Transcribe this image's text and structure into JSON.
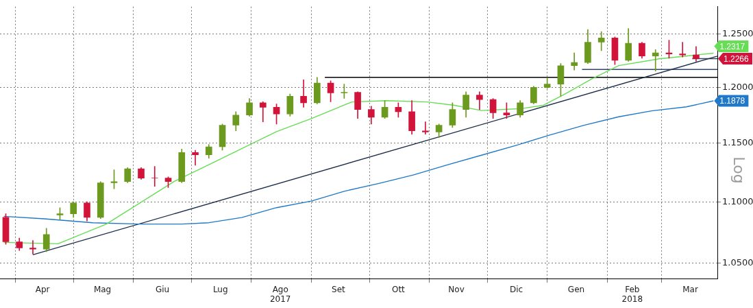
{
  "chart_data": {
    "type": "candlestick",
    "log": true,
    "grid": true,
    "legend": false,
    "marker": "none",
    "x": [
      "2017-03-27",
      "2017-04-03",
      "2017-04-10",
      "2017-04-17",
      "2017-04-24",
      "2017-05-01",
      "2017-05-08",
      "2017-05-15",
      "2017-05-22",
      "2017-05-29",
      "2017-06-05",
      "2017-06-12",
      "2017-06-19",
      "2017-06-26",
      "2017-07-03",
      "2017-07-10",
      "2017-07-17",
      "2017-07-24",
      "2017-07-31",
      "2017-08-07",
      "2017-08-14",
      "2017-08-21",
      "2017-08-28",
      "2017-09-04",
      "2017-09-11",
      "2017-09-18",
      "2017-09-25",
      "2017-10-02",
      "2017-10-09",
      "2017-10-16",
      "2017-10-23",
      "2017-10-30",
      "2017-11-06",
      "2017-11-13",
      "2017-11-20",
      "2017-11-27",
      "2017-12-04",
      "2017-12-11",
      "2017-12-18",
      "2017-12-25",
      "2018-01-01",
      "2018-01-08",
      "2018-01-15",
      "2018-01-22",
      "2018-01-29",
      "2018-02-05",
      "2018-02-12",
      "2018-02-19",
      "2018-02-26",
      "2018-03-05",
      "2018-03-12",
      "2018-03-19"
    ],
    "ohlc": [
      [
        1.087,
        1.09,
        1.065,
        1.067
      ],
      [
        1.067,
        1.07,
        1.06,
        1.062
      ],
      [
        1.062,
        1.068,
        1.057,
        1.061
      ],
      [
        1.061,
        1.078,
        1.059,
        1.073
      ],
      [
        1.089,
        1.095,
        1.085,
        1.09
      ],
      [
        1.09,
        1.1,
        1.087,
        1.099
      ],
      [
        1.099,
        1.1,
        1.084,
        1.087
      ],
      [
        1.087,
        1.117,
        1.086,
        1.116
      ],
      [
        1.116,
        1.127,
        1.111,
        1.117
      ],
      [
        1.117,
        1.129,
        1.116,
        1.128
      ],
      [
        1.128,
        1.129,
        1.119,
        1.12
      ],
      [
        1.12,
        1.13,
        1.113,
        1.12
      ],
      [
        1.12,
        1.121,
        1.112,
        1.117
      ],
      [
        1.117,
        1.145,
        1.116,
        1.142
      ],
      [
        1.142,
        1.144,
        1.131,
        1.14
      ],
      [
        1.14,
        1.149,
        1.137,
        1.147
      ],
      [
        1.147,
        1.167,
        1.144,
        1.166
      ],
      [
        1.166,
        1.178,
        1.161,
        1.175
      ],
      [
        1.175,
        1.19,
        1.174,
        1.186
      ],
      [
        1.186,
        1.187,
        1.169,
        1.182
      ],
      [
        1.182,
        1.185,
        1.167,
        1.176
      ],
      [
        1.176,
        1.194,
        1.174,
        1.192
      ],
      [
        1.192,
        1.207,
        1.182,
        1.186
      ],
      [
        1.186,
        1.2092,
        1.185,
        1.204
      ],
      [
        1.204,
        1.206,
        1.187,
        1.195
      ],
      [
        1.195,
        1.203,
        1.19,
        1.1955
      ],
      [
        1.1955,
        1.196,
        1.172,
        1.18
      ],
      [
        1.18,
        1.183,
        1.167,
        1.173
      ],
      [
        1.173,
        1.188,
        1.172,
        1.182
      ],
      [
        1.182,
        1.186,
        1.173,
        1.178
      ],
      [
        1.178,
        1.188,
        1.158,
        1.161
      ],
      [
        1.161,
        1.169,
        1.158,
        1.16
      ],
      [
        1.16,
        1.167,
        1.155,
        1.166
      ],
      [
        1.166,
        1.186,
        1.164,
        1.18
      ],
      [
        1.18,
        1.196,
        1.173,
        1.193
      ],
      [
        1.193,
        1.196,
        1.18,
        1.189
      ],
      [
        1.189,
        1.19,
        1.172,
        1.177
      ],
      [
        1.177,
        1.186,
        1.172,
        1.175
      ],
      [
        1.175,
        1.188,
        1.173,
        1.186
      ],
      [
        1.186,
        1.201,
        1.185,
        1.2
      ],
      [
        1.2,
        1.209,
        1.199,
        1.203
      ],
      [
        1.203,
        1.222,
        1.192,
        1.22
      ],
      [
        1.22,
        1.232,
        1.216,
        1.223
      ],
      [
        1.223,
        1.254,
        1.222,
        1.242
      ],
      [
        1.242,
        1.252,
        1.234,
        1.246
      ],
      [
        1.246,
        1.247,
        1.221,
        1.225
      ],
      [
        1.225,
        1.255,
        1.224,
        1.241
      ],
      [
        1.241,
        1.242,
        1.227,
        1.229
      ],
      [
        1.229,
        1.235,
        1.215,
        1.232
      ],
      [
        1.232,
        1.244,
        1.227,
        1.231
      ],
      [
        1.231,
        1.242,
        1.228,
        1.23
      ],
      [
        1.23,
        1.238,
        1.224,
        1.2266
      ]
    ],
    "colors": [
      "#d2143a",
      "#d2143a",
      "#d2143a",
      "#6b9a1e",
      "#6b9a1e",
      "#6b9a1e",
      "#d2143a",
      "#6b9a1e",
      "#6b9a1e",
      "#6b9a1e",
      "#d2143a",
      "#d2143a",
      "#d2143a",
      "#6b9a1e",
      "#d2143a",
      "#6b9a1e",
      "#6b9a1e",
      "#6b9a1e",
      "#6b9a1e",
      "#d2143a",
      "#d2143a",
      "#6b9a1e",
      "#d2143a",
      "#6b9a1e",
      "#d2143a",
      "#6b9a1e",
      "#d2143a",
      "#d2143a",
      "#6b9a1e",
      "#d2143a",
      "#d2143a",
      "#d2143a",
      "#6b9a1e",
      "#6b9a1e",
      "#6b9a1e",
      "#d2143a",
      "#d2143a",
      "#d2143a",
      "#6b9a1e",
      "#6b9a1e",
      "#6b9a1e",
      "#6b9a1e",
      "#6b9a1e",
      "#6b9a1e",
      "#6b9a1e",
      "#d2143a",
      "#6b9a1e",
      "#d2143a",
      "#6b9a1e",
      "#d2143a",
      "#d2143a",
      "#d2143a"
    ],
    "series": [
      {
        "type": "line",
        "color": "#66dd55",
        "x": [
          "2017-03-26",
          "2017-04-23",
          "2017-05-18",
          "2017-06-22",
          "2017-07-10",
          "2017-08-14",
          "2017-09-01",
          "2017-09-22",
          "2017-10-10",
          "2017-10-31",
          "2017-11-14",
          "2017-11-28",
          "2017-12-19",
          "2017-12-30",
          "2018-01-09",
          "2018-01-24",
          "2018-02-07",
          "2018-02-28",
          "2018-03-28"
        ],
        "values": [
          1.0665,
          1.0654,
          1.0815,
          1.1171,
          1.1314,
          1.1603,
          1.1719,
          1.1868,
          1.188,
          1.1868,
          1.1838,
          1.1791,
          1.1809,
          1.1838,
          1.1929,
          1.2078,
          1.2201,
          1.2264,
          1.2317
        ]
      },
      {
        "type": "line",
        "color": "#1f78c8",
        "x": [
          "2017-03-26",
          "2017-04-16",
          "2017-05-11",
          "2017-06-04",
          "2017-06-26",
          "2017-07-10",
          "2017-07-27",
          "2017-08-14",
          "2017-09-01",
          "2017-09-18",
          "2017-10-06",
          "2017-10-24",
          "2017-11-10",
          "2017-11-28",
          "2017-12-16",
          "2018-01-02",
          "2018-01-20",
          "2018-02-07",
          "2018-02-24",
          "2018-03-14",
          "2018-03-28"
        ],
        "values": [
          1.0879,
          1.0858,
          1.0826,
          1.0815,
          1.0815,
          1.0826,
          1.0869,
          1.0951,
          1.1006,
          1.1088,
          1.1155,
          1.1228,
          1.1312,
          1.1397,
          1.1483,
          1.1571,
          1.1659,
          1.1735,
          1.1788,
          1.1824,
          1.1878
        ]
      },
      {
        "type": "line",
        "color": "#1c2e4a",
        "x": [
          "2017-04-10",
          "2018-03-30"
        ],
        "values": [
          1.0565,
          1.2289
        ]
      },
      {
        "type": "line",
        "color": "#000000",
        "x": [
          "2017-09-08",
          "2018-03-30"
        ],
        "values": [
          1.2092,
          1.2092
        ]
      },
      {
        "type": "line",
        "color": "#34456a",
        "x": [
          "2018-01-19",
          "2018-03-30"
        ],
        "values": [
          1.2165,
          1.2165
        ]
      },
      {
        "type": "line",
        "color": "#34456a",
        "x": [
          "2018-03-17",
          "2018-03-30"
        ],
        "values": [
          1.2266,
          1.2266
        ]
      }
    ],
    "xlim": [
      "2017-03-24",
      "2018-03-30"
    ],
    "xticks": [
      {
        "value": "2017-04-01",
        "label": null
      },
      {
        "value": "2017-04-15",
        "label": "Apr"
      },
      {
        "value": "2017-05-01",
        "label": null
      },
      {
        "value": "2017-05-16",
        "label": "Mag"
      },
      {
        "value": "2017-06-01",
        "label": null
      },
      {
        "value": "2017-06-16",
        "label": "Giu"
      },
      {
        "value": "2017-07-01",
        "label": null
      },
      {
        "value": "2017-07-16",
        "label": "Lug"
      },
      {
        "value": "2017-08-01",
        "label": null
      },
      {
        "value": "2017-08-16",
        "label": "Ago\n2017"
      },
      {
        "value": "2017-09-01",
        "label": null
      },
      {
        "value": "2017-09-15",
        "label": "Set"
      },
      {
        "value": "2017-10-01",
        "label": null
      },
      {
        "value": "2017-10-16",
        "label": "Ott"
      },
      {
        "value": "2017-11-01",
        "label": null
      },
      {
        "value": "2017-11-15",
        "label": "Nov"
      },
      {
        "value": "2017-12-01",
        "label": null
      },
      {
        "value": "2017-12-16",
        "label": "Dic"
      },
      {
        "value": "2018-01-01",
        "label": null
      },
      {
        "value": "2018-01-16",
        "label": "Gen"
      },
      {
        "value": "2018-02-01",
        "label": null
      },
      {
        "value": "2018-02-14",
        "label": "Feb\n2018"
      },
      {
        "value": "2018-03-01",
        "label": null
      },
      {
        "value": "2018-03-16",
        "label": "Mar"
      }
    ],
    "ylim": [
      1.0375,
      1.276
    ],
    "yticks": [
      {
        "value": 1.05,
        "label": "1.0500"
      },
      {
        "value": 1.1,
        "label": "1.1000"
      },
      {
        "value": 1.15,
        "label": "1.1500"
      },
      {
        "value": 1.2,
        "label": "1.2000"
      },
      {
        "value": 1.25,
        "label": "1.2500"
      }
    ],
    "annotations": [
      {
        "text": "1.2317",
        "x": "2018-03-28",
        "y": 1.2317
      },
      {
        "text": "1.2266",
        "x": "2018-03-30",
        "y": 1.2266
      },
      {
        "text": "1.1878",
        "x": "2018-03-28",
        "y": 1.1878
      },
      "Log"
    ]
  }
}
